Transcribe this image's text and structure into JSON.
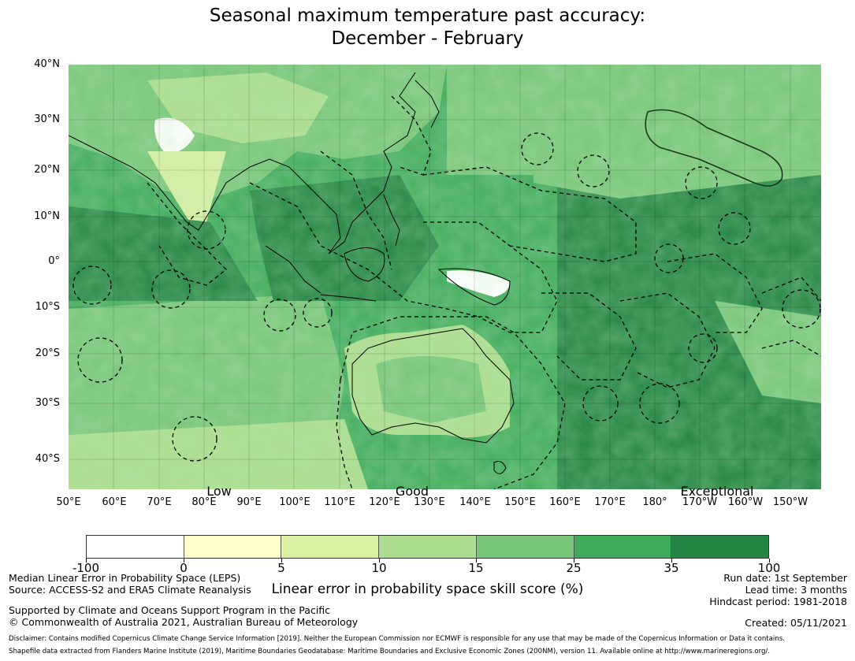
{
  "title": {
    "line1": "Seasonal maximum temperature past accuracy:",
    "line2": "December - February"
  },
  "colors": {
    "background": "#ffffff",
    "coast": "#000000",
    "palette": [
      "#ffffff",
      "#ffffcc",
      "#d9f0a3",
      "#addd8e",
      "#78c679",
      "#41ab5d",
      "#238443"
    ]
  },
  "map": {
    "lat_labels": [
      "40°N",
      "30°N",
      "20°N",
      "10°N",
      "0°",
      "10°S",
      "20°S",
      "30°S",
      "40°S"
    ],
    "lon_labels": [
      "50°E",
      "60°E",
      "70°E",
      "80°E",
      "90°E",
      "100°E",
      "110°E",
      "120°E",
      "130°E",
      "140°E",
      "150°E",
      "160°E",
      "170°E",
      "180°",
      "170°W",
      "160°W",
      "150°W"
    ],
    "category_labels": [
      "Low",
      "Good",
      "Exceptional"
    ]
  },
  "legend": {
    "ticks": [
      "-100",
      "0",
      "5",
      "10",
      "15",
      "25",
      "35",
      "100"
    ],
    "label": "Linear error in probability space skill score (%)"
  },
  "footer": {
    "left1": "Median Linear Error in Probability Space (LEPS)",
    "left2": "Source: ACCESS-S2 and ERA5 Climate Reanalysis",
    "left3": "Supported by Climate and Oceans Support Program in the Pacific",
    "left4": "© Commonwealth of Australia 2021, Australian Bureau of Meteorology",
    "right1": "Run date: 1st September",
    "right2": "Lead time: 3 months",
    "right3": "Hindcast period: 1981-2018",
    "right4": "Created: 05/11/2021",
    "disclaimer1": "Disclaimer: Contains modified Copernicus Climate Change Service Information [2019]. Neither the European Commission nor ECMWF is responsible for any use that may be made of the Copernicus Information or Data it contains.",
    "disclaimer2": "Shapefile data extracted from Flanders Marine Institute (2019), Maritime Boundaries Geodatabase: Maritime Boundaries and Exclusive Economic Zones (200NM), version 11. Available online at http://www.marineregions.org/."
  }
}
